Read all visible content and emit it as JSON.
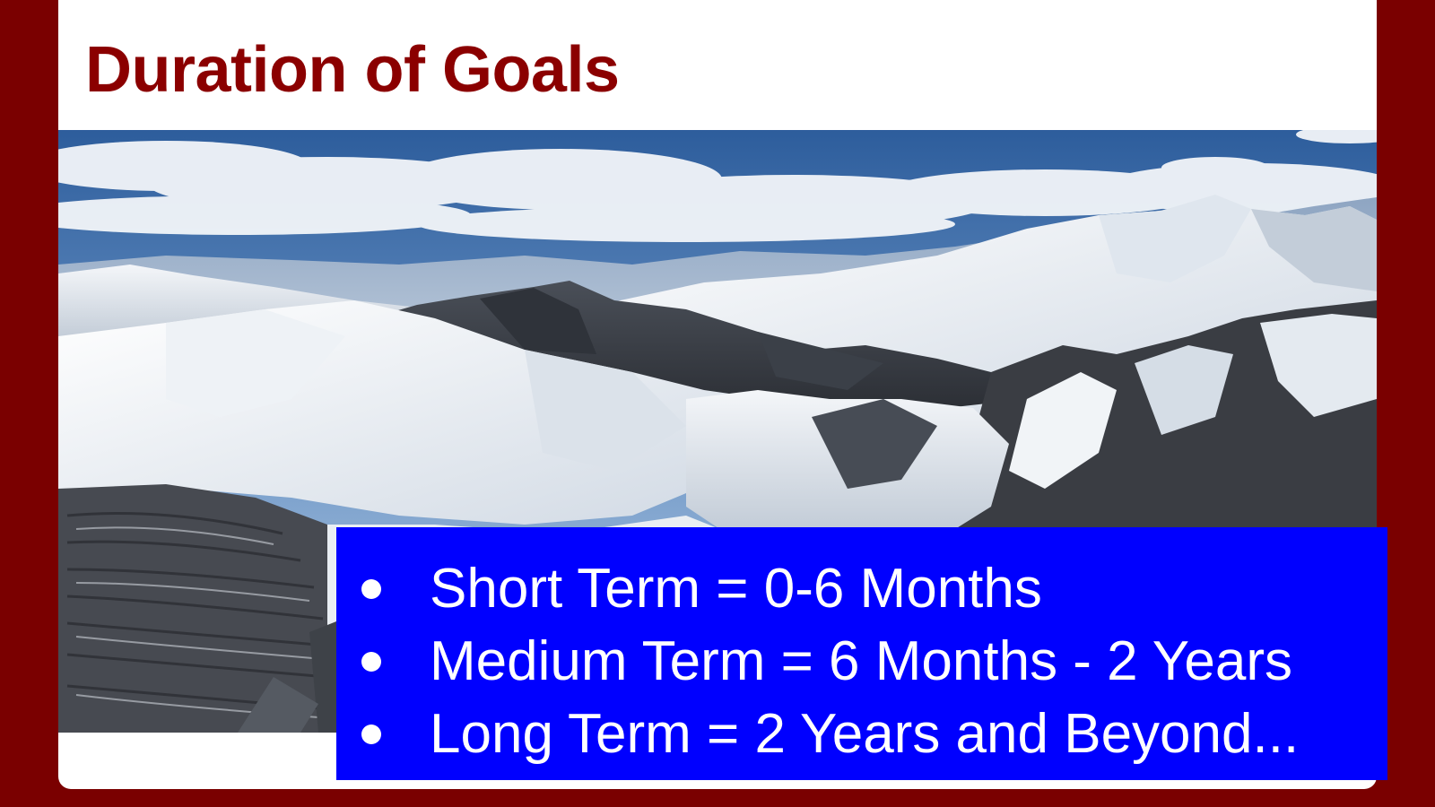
{
  "slide": {
    "title": "Duration of Goals",
    "image": {
      "subject": "snow-covered-mountain-range-photo"
    },
    "bullets": [
      "Short Term = 0-6 Months",
      "Medium Term = 6 Months - 2 Years",
      "Long Term = 2 Years and Beyond..."
    ]
  },
  "colors": {
    "frame": "#7a0000",
    "title": "#8b0000",
    "bullet_box": "#0000ff",
    "bullet_text": "#ffffff",
    "slide_background": "#ffffff"
  }
}
